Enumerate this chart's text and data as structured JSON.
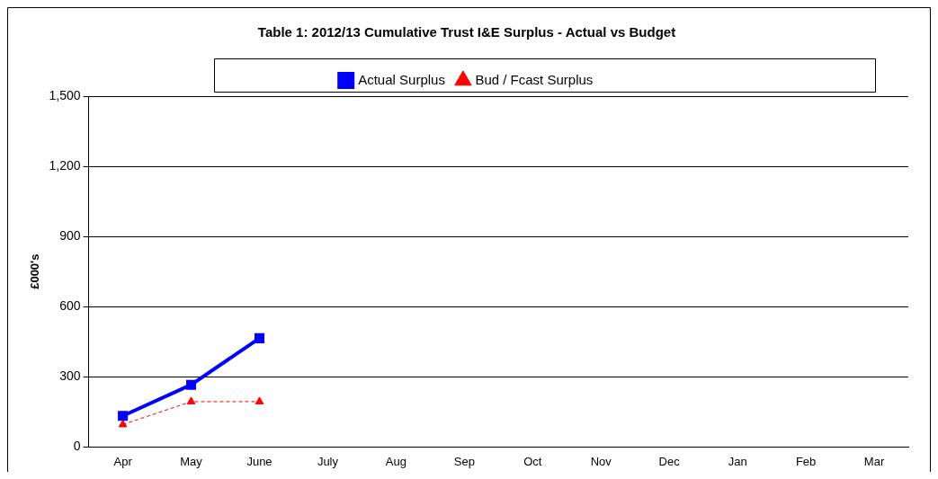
{
  "chart_data": {
    "type": "line",
    "title": "Table 1: 2012/13 Cumulative Trust I&E Surplus - Actual vs Budget",
    "ylabel": "£000's",
    "categories": [
      "Apr",
      "May",
      "June",
      "July",
      "Aug",
      "Sep",
      "Oct",
      "Nov",
      "Dec",
      "Jan",
      "Feb",
      "Mar"
    ],
    "series": [
      {
        "name": "Actual Surplus",
        "color": "#0000ff",
        "marker": "square",
        "line_style": "solid",
        "values": [
          133,
          266,
          465,
          null,
          null,
          null,
          null,
          null,
          null,
          null,
          null,
          null
        ]
      },
      {
        "name": "Bud / Fcast Surplus",
        "color": "#ff0000",
        "marker": "triangle",
        "line_style": "dashed",
        "values": [
          96,
          194,
          194,
          null,
          null,
          null,
          null,
          null,
          null,
          null,
          null,
          null
        ]
      }
    ],
    "ylim": [
      0,
      1500
    ],
    "yticks": [
      {
        "value": 0,
        "label": "0"
      },
      {
        "value": 300,
        "label": "300"
      },
      {
        "value": 600,
        "label": "600"
      },
      {
        "value": 900,
        "label": "900"
      },
      {
        "value": 1200,
        "label": "1,200"
      },
      {
        "value": 1500,
        "label": "1,500"
      }
    ],
    "grid": "y",
    "legend": "top"
  }
}
